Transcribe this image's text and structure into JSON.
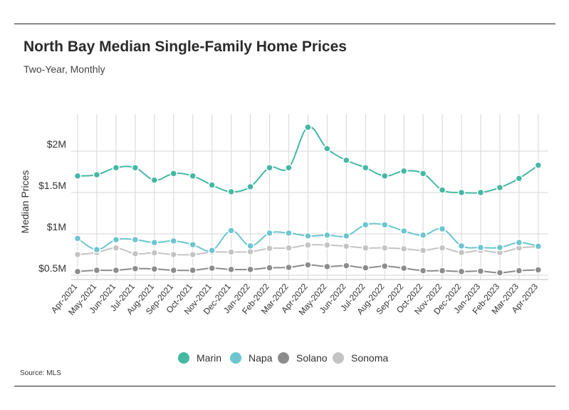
{
  "title": "North Bay Median Single-Family Home Prices",
  "subtitle": "Two-Year, Monthly",
  "source": "Source: MLS",
  "chart_data": {
    "type": "line",
    "title": "North Bay Median Single-Family Home Prices",
    "subtitle": "Two-Year, Monthly",
    "ylabel": "Median Prices",
    "xlabel": "",
    "ylim": [
      400000,
      2700000
    ],
    "yticks": [
      500000,
      1000000,
      1500000,
      2000000
    ],
    "yticklabels": [
      "$0.5M",
      "$1M",
      "$1.5M",
      "$2M"
    ],
    "grid": "vertical lines at each month, horizontal lines at y ticks",
    "legend_position": "bottom",
    "categories": [
      "Apr-2021",
      "May-2021",
      "Jun-2021",
      "Jul-2021",
      "Aug-2021",
      "Sep-2021",
      "Oct-2021",
      "Nov-2021",
      "Dec-2021",
      "Jan-2022",
      "Feb-2022",
      "Mar-2022",
      "Apr-2022",
      "May-2022",
      "Jun-2022",
      "Jul-2022",
      "Aug-2022",
      "Sep-2022",
      "Oct-2022",
      "Nov-2022",
      "Dec-2022",
      "Jan-2023",
      "Feb-2023",
      "Mar-2023",
      "Apr-2023"
    ],
    "series": [
      {
        "name": "Marin",
        "color": "#45b8a2",
        "values": [
          1700000,
          1715000,
          1800000,
          1800000,
          1650000,
          1730000,
          1700000,
          1590000,
          1510000,
          1570000,
          1800000,
          1800000,
          2290000,
          2030000,
          1890000,
          1800000,
          1700000,
          1760000,
          1730000,
          1530000,
          1500000,
          1500000,
          1560000,
          1670000,
          1830000
        ]
      },
      {
        "name": "Napa",
        "color": "#6cc5cf",
        "values": [
          945000,
          810000,
          930000,
          930000,
          895000,
          915000,
          870000,
          800000,
          1040000,
          855000,
          1010000,
          1010000,
          975000,
          985000,
          975000,
          1110000,
          1110000,
          1035000,
          985000,
          1060000,
          855000,
          835000,
          835000,
          895000,
          850000
        ]
      },
      {
        "name": "Solano",
        "color": "#8c8c8c",
        "values": [
          545000,
          560000,
          560000,
          580000,
          575000,
          560000,
          560000,
          585000,
          570000,
          570000,
          590000,
          595000,
          625000,
          605000,
          615000,
          590000,
          610000,
          585000,
          555000,
          555000,
          545000,
          550000,
          530000,
          555000,
          565000
        ]
      },
      {
        "name": "Sonoma",
        "color": "#c4c4c4",
        "values": [
          750000,
          775000,
          830000,
          760000,
          770000,
          750000,
          750000,
          780000,
          780000,
          785000,
          825000,
          830000,
          865000,
          865000,
          850000,
          830000,
          830000,
          820000,
          800000,
          830000,
          775000,
          800000,
          775000,
          830000,
          845000
        ]
      }
    ]
  }
}
